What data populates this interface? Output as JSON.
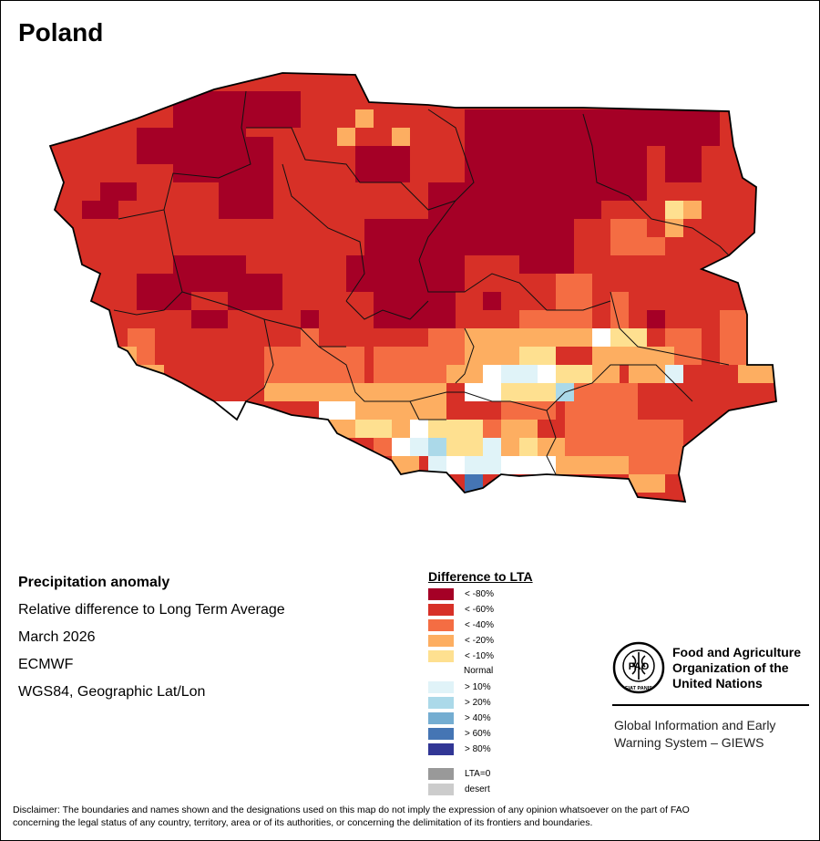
{
  "map": {
    "title": "Poland",
    "colors": {
      "lt80": "#a50026",
      "lt60": "#d73027",
      "lt40": "#f46d43",
      "lt20": "#fdae61",
      "lt10": "#fee090",
      "gt10": "#e0f3f8",
      "gt20": "#abd9e9",
      "gt40": "#74add1",
      "gt60": "#4575b4",
      "gt80": "#313695"
    }
  },
  "info": {
    "variable": "Precipitation anomaly",
    "description": "Relative difference to Long Term Average",
    "period": "March 2026",
    "source": "ECMWF",
    "projection": "WGS84, Geographic Lat/Lon"
  },
  "legend": {
    "title": "Difference to LTA",
    "normal_label": "Normal",
    "items": [
      {
        "label": "< -80%",
        "color": "#a50026"
      },
      {
        "label": "< -60%",
        "color": "#d73027"
      },
      {
        "label": "< -40%",
        "color": "#f46d43"
      },
      {
        "label": "< -20%",
        "color": "#fdae61"
      },
      {
        "label": "< -10%",
        "color": "#fee090"
      },
      {
        "label": "> 10%",
        "color": "#e0f3f8"
      },
      {
        "label": "> 20%",
        "color": "#abd9e9"
      },
      {
        "label": "> 40%",
        "color": "#74add1"
      },
      {
        "label": "> 60%",
        "color": "#4575b4"
      },
      {
        "label": "> 80%",
        "color": "#313695"
      },
      {
        "label": "LTA=0",
        "color": "#999999"
      },
      {
        "label": "desert",
        "color": "#cccccc"
      }
    ]
  },
  "logo": {
    "org_name_line1": "Food and Agriculture",
    "org_name_line2": "Organization of the",
    "org_name_line3": "United Nations",
    "emblem_text": "FAO",
    "emblem_motto": "FIAT PANIS",
    "giews_line1": "Global Information and Early",
    "giews_line2": "Warning System – GIEWS"
  },
  "disclaimer": {
    "line1": "Disclaimer: The boundaries and names shown and the designations used on this map do not imply the expression of any opinion whatsoever on the part of FAO",
    "line2": "concerning the legal status of any country, territory, area or of its authorities, or concerning the delimitation of its frontiers and boundaries."
  }
}
